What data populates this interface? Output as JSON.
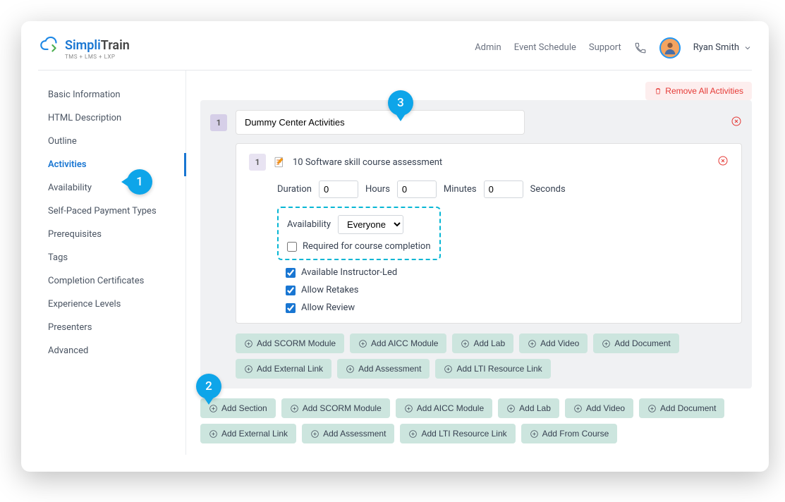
{
  "header": {
    "logo_simpli": "Simpli",
    "logo_train": "Train",
    "logo_sub": "TMS + LMS + LXP",
    "links": {
      "admin": "Admin",
      "event": "Event Schedule",
      "support": "Support"
    },
    "username": "Ryan Smith"
  },
  "sidebar": {
    "items": [
      "Basic Information",
      "HTML Description",
      "Outline",
      "Activities",
      "Availability",
      "Self-Paced Payment Types",
      "Prerequisites",
      "Tags",
      "Completion Certificates",
      "Experience Levels",
      "Presenters",
      "Advanced"
    ],
    "active_index": 3
  },
  "main": {
    "remove_all": "Remove All Activities",
    "section": {
      "num": "1",
      "title": "Dummy Center Activities",
      "activity": {
        "num": "1",
        "title": "10 Software skill course assessment",
        "duration_label": "Duration",
        "hours_val": "0",
        "hours_label": "Hours",
        "minutes_val": "0",
        "minutes_label": "Minutes",
        "seconds_val": "0",
        "seconds_label": "Seconds",
        "availability_label": "Availability",
        "availability_value": "Everyone",
        "checks": {
          "required": "Required for course completion",
          "instructor": "Available Instructor-Led",
          "retakes": "Allow Retakes",
          "review": "Allow Review"
        }
      },
      "inner_buttons": [
        "Add SCORM Module",
        "Add AICC Module",
        "Add Lab",
        "Add Video",
        "Add Document",
        "Add External Link",
        "Add Assessment",
        "Add LTI Resource Link"
      ]
    },
    "outer_buttons": [
      "Add Section",
      "Add SCORM Module",
      "Add AICC Module",
      "Add Lab",
      "Add Video",
      "Add Document",
      "Add External Link",
      "Add Assessment",
      "Add LTI Resource Link",
      "Add From Course"
    ]
  },
  "callouts": {
    "c1": "1",
    "c2": "2",
    "c3": "3"
  }
}
